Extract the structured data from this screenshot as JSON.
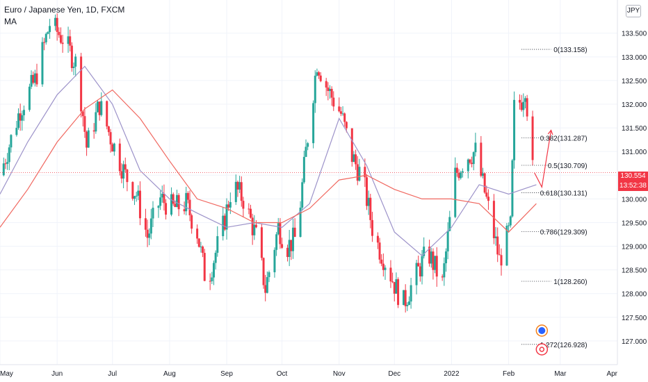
{
  "legend": {
    "title": "Euro / Japanese Yen, 1D, FXCM",
    "indicator": "MA"
  },
  "currency_badge": "JPY",
  "last_price": {
    "value": "130.554",
    "countdown": "13:52:38",
    "color": "#f23645"
  },
  "colors": {
    "up": "#26a69a",
    "down": "#f23645",
    "ma_fast": "#9c92c9",
    "ma_slow": "#f0675f",
    "grid": "#f0f3fa",
    "axis_text": "#131722",
    "arrow": "#f23645"
  },
  "chart_data": {
    "type": "candlestick",
    "title": "Euro / Japanese Yen, 1D, FXCM",
    "ylim": [
      126.5,
      134.2
    ],
    "y_ticks": [
      "127.000",
      "127.500",
      "128.000",
      "128.500",
      "129.000",
      "129.500",
      "130.000",
      "130.500",
      "131.000",
      "131.500",
      "132.000",
      "132.500",
      "133.000",
      "133.500"
    ],
    "x_range": [
      "2021-05-01",
      "2022-04-01"
    ],
    "x_ticks": [
      {
        "label": "May",
        "date": "2021-05-01"
      },
      {
        "label": "Jun",
        "date": "2021-06-01"
      },
      {
        "label": "Jul",
        "date": "2021-07-01"
      },
      {
        "label": "Aug",
        "date": "2021-08-01"
      },
      {
        "label": "Sep",
        "date": "2021-09-01"
      },
      {
        "label": "Oct",
        "date": "2021-10-01"
      },
      {
        "label": "Nov",
        "date": "2021-11-01"
      },
      {
        "label": "Dec",
        "date": "2021-12-01"
      },
      {
        "label": "2022",
        "date": "2022-01-01"
      },
      {
        "label": "Feb",
        "date": "2022-02-01"
      },
      {
        "label": "Mar",
        "date": "2022-03-01"
      },
      {
        "label": "Apr",
        "date": "2022-04-01"
      }
    ],
    "grid": true,
    "close_path": [
      [
        "2021-05-01",
        130.5
      ],
      [
        "2021-05-12",
        131.9
      ],
      [
        "2021-05-20",
        132.5
      ],
      [
        "2021-05-28",
        133.7
      ],
      [
        "2021-06-04",
        133.4
      ],
      [
        "2021-06-12",
        132.8
      ],
      [
        "2021-06-17",
        131.1
      ],
      [
        "2021-06-24",
        132.0
      ],
      [
        "2021-06-30",
        131.3
      ],
      [
        "2021-07-08",
        130.5
      ],
      [
        "2021-07-14",
        130.1
      ],
      [
        "2021-07-20",
        129.2
      ],
      [
        "2021-07-27",
        130.0
      ],
      [
        "2021-08-03",
        129.8
      ],
      [
        "2021-08-10",
        129.9
      ],
      [
        "2021-08-16",
        129.3
      ],
      [
        "2021-08-21",
        128.2
      ],
      [
        "2021-08-30",
        129.4
      ],
      [
        "2021-09-04",
        130.3
      ],
      [
        "2021-09-10",
        130.0
      ],
      [
        "2021-09-17",
        129.2
      ],
      [
        "2021-09-22",
        128.1
      ],
      [
        "2021-09-29",
        129.4
      ],
      [
        "2021-10-04",
        129.0
      ],
      [
        "2021-10-09",
        129.2
      ],
      [
        "2021-10-14",
        131.0
      ],
      [
        "2021-10-20",
        132.9
      ],
      [
        "2021-10-26",
        132.3
      ],
      [
        "2021-11-02",
        131.8
      ],
      [
        "2021-11-08",
        130.9
      ],
      [
        "2021-11-14",
        130.4
      ],
      [
        "2021-11-20",
        129.2
      ],
      [
        "2021-11-27",
        128.6
      ],
      [
        "2021-12-02",
        128.1
      ],
      [
        "2021-12-06",
        127.8
      ],
      [
        "2021-12-13",
        128.4
      ],
      [
        "2021-12-19",
        128.9
      ],
      [
        "2021-12-27",
        128.2
      ],
      [
        "2022-01-03",
        130.5
      ],
      [
        "2022-01-09",
        130.9
      ],
      [
        "2022-01-14",
        131.0
      ],
      [
        "2022-01-21",
        129.8
      ],
      [
        "2022-01-27",
        128.7
      ],
      [
        "2022-02-02",
        129.4
      ],
      [
        "2022-02-04",
        131.9
      ],
      [
        "2022-02-08",
        132.1
      ],
      [
        "2022-02-10",
        132.4
      ],
      [
        "2022-02-14",
        130.6
      ]
    ],
    "series": [
      {
        "name": "MA",
        "values": [
          [
            "2021-05-01",
            130.1
          ],
          [
            "2021-05-16",
            131.2
          ],
          [
            "2021-06-01",
            132.2
          ],
          [
            "2021-06-16",
            132.8
          ],
          [
            "2021-07-01",
            132.0
          ],
          [
            "2021-07-16",
            130.6
          ],
          [
            "2021-08-01",
            130.0
          ],
          [
            "2021-08-16",
            129.7
          ],
          [
            "2021-09-01",
            129.4
          ],
          [
            "2021-09-16",
            129.5
          ],
          [
            "2021-10-01",
            129.4
          ],
          [
            "2021-10-16",
            129.9
          ],
          [
            "2021-11-01",
            131.7
          ],
          [
            "2021-11-16",
            130.7
          ],
          [
            "2021-12-01",
            129.3
          ],
          [
            "2021-12-16",
            128.8
          ],
          [
            "2022-01-01",
            129.4
          ],
          [
            "2022-01-16",
            130.3
          ],
          [
            "2022-02-01",
            130.1
          ],
          [
            "2022-02-16",
            130.3
          ]
        ]
      },
      {
        "values": [
          [
            "2021-05-01",
            129.4
          ],
          [
            "2021-05-16",
            130.2
          ],
          [
            "2021-06-01",
            131.2
          ],
          [
            "2021-06-16",
            131.9
          ],
          [
            "2021-07-01",
            132.3
          ],
          [
            "2021-07-16",
            131.7
          ],
          [
            "2021-08-01",
            130.8
          ],
          [
            "2021-08-16",
            130.0
          ],
          [
            "2021-09-01",
            129.8
          ],
          [
            "2021-09-16",
            129.5
          ],
          [
            "2021-10-01",
            129.5
          ],
          [
            "2021-10-16",
            129.8
          ],
          [
            "2021-11-01",
            130.4
          ],
          [
            "2021-11-16",
            130.5
          ],
          [
            "2021-12-01",
            130.2
          ],
          [
            "2021-12-16",
            130.0
          ],
          [
            "2022-01-01",
            130.0
          ],
          [
            "2022-01-16",
            129.9
          ],
          [
            "2022-02-01",
            129.3
          ],
          [
            "2022-02-16",
            129.9
          ]
        ]
      }
    ],
    "fibonacci": {
      "start_date": "2022-02-08",
      "end_date": "2022-02-24",
      "levels": [
        {
          "label": "0(133.158)",
          "value": 133.158
        },
        {
          "label": "0.382(131.287)",
          "value": 131.287
        },
        {
          "label": "0.5(130.709)",
          "value": 130.709
        },
        {
          "label": "0.618(130.131)",
          "value": 130.131
        },
        {
          "label": "0.786(129.309)",
          "value": 129.309
        },
        {
          "label": "1(128.260)",
          "value": 128.26
        },
        {
          "label": "1.272(126.928)",
          "value": 126.928
        }
      ]
    },
    "forecast_arrow": [
      [
        "2022-02-15",
        130.55
      ],
      [
        "2022-02-19",
        130.25
      ],
      [
        "2022-02-24",
        131.45
      ]
    ],
    "last_price": 130.554
  }
}
